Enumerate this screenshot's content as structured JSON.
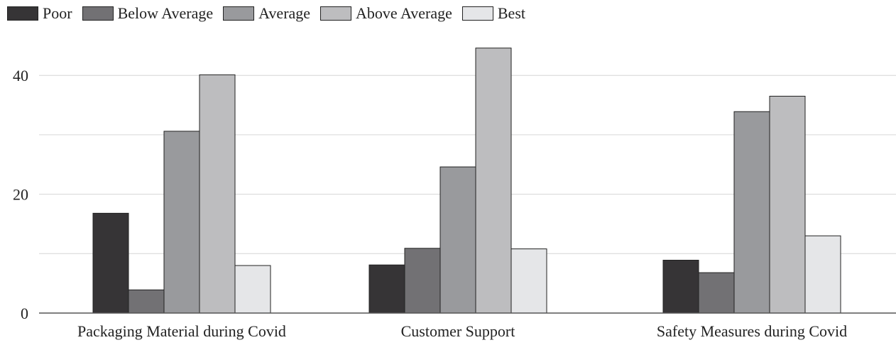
{
  "chart_data": {
    "type": "bar",
    "categories": [
      "Packaging Material during Covid",
      "Customer Support",
      "Safety Measures during Covid"
    ],
    "series": [
      {
        "name": "Poor",
        "values": [
          16.8,
          8.1,
          8.9
        ],
        "color": "#363436"
      },
      {
        "name": "Below Average",
        "values": [
          3.9,
          10.9,
          6.8
        ],
        "color": "#727174"
      },
      {
        "name": "Average",
        "values": [
          30.6,
          24.6,
          33.9
        ],
        "color": "#999a9d"
      },
      {
        "name": "Above Average",
        "values": [
          40.1,
          44.6,
          36.5
        ],
        "color": "#bdbdbf"
      },
      {
        "name": "Best",
        "values": [
          8.0,
          10.8,
          13.0
        ],
        "color": "#e5e6e8"
      }
    ],
    "yticks": [
      0,
      20,
      40
    ],
    "ylim": [
      0,
      46
    ],
    "grid": true,
    "legend_position": "top-left",
    "title": "",
    "xlabel": "",
    "ylabel": ""
  }
}
